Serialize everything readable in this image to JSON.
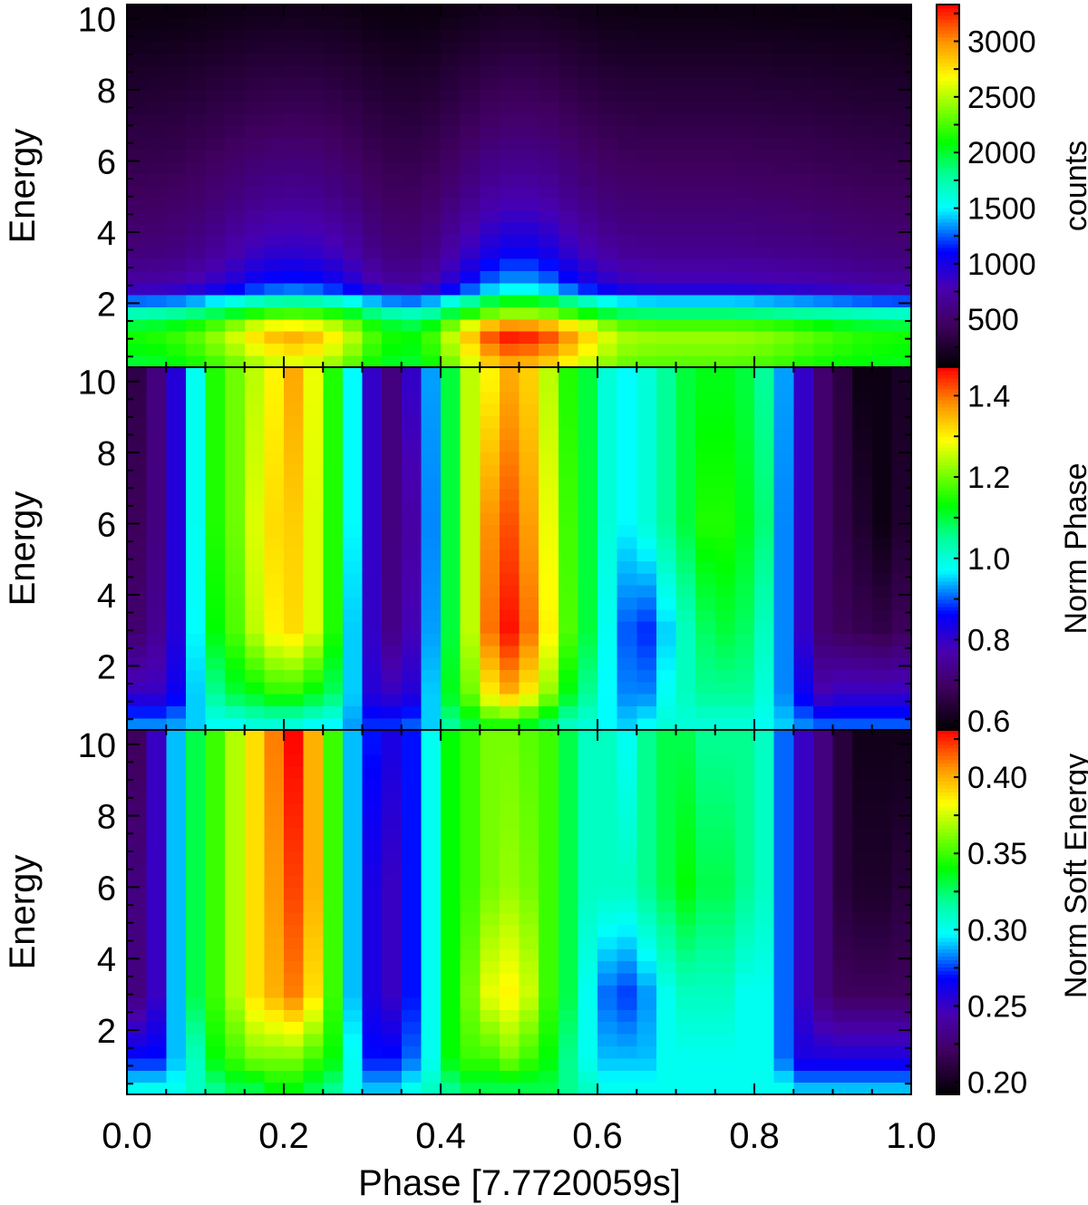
{
  "chart_data": {
    "type": "heatmap",
    "xlabel": "Phase [7.7720059s]",
    "x_range": [
      0.0,
      1.0
    ],
    "x_ticks": [
      "0.0",
      "0.2",
      "0.4",
      "0.6",
      "0.8",
      "1.0"
    ],
    "x_bins": 40,
    "energy_bins": 30,
    "colors": {
      "stops": [
        "#000000",
        "#400060",
        "#4800b0",
        "#0000ff",
        "#00ffff",
        "#00ff98",
        "#00ff00",
        "#ffff00",
        "#ff9000",
        "#ff0000"
      ],
      "positions": [
        0,
        0.12,
        0.22,
        0.32,
        0.44,
        0.53,
        0.62,
        0.8,
        0.9,
        1.0
      ]
    },
    "panels": [
      {
        "name": "counts",
        "ylabel": "Energy",
        "y_range": [
          0.2,
          10.4
        ],
        "y_ticks": [
          "2",
          "4",
          "6",
          "8",
          "10"
        ],
        "colorbar_label": "counts",
        "colorbar_range": [
          70,
          3330
        ],
        "colorbar_ticks": [
          "500",
          "1000",
          "1500",
          "2000",
          "2500",
          "3000"
        ],
        "colorbar_minor_step": 250,
        "phase_nodes": [
          0.025,
          0.075,
          0.125,
          0.175,
          0.225,
          0.275,
          0.325,
          0.375,
          0.425,
          0.475,
          0.525,
          0.575,
          0.625,
          0.675,
          0.725,
          0.775,
          0.825,
          0.875,
          0.925,
          0.975
        ],
        "energy_nodes": [
          0.4,
          1.0,
          1.3,
          1.7,
          2.0,
          2.2,
          2.5,
          3.5,
          5,
          7,
          10.2
        ],
        "z_by_energy": [
          [
            2000,
            2100,
            2300,
            2550,
            2650,
            2400,
            2050,
            2000,
            2500,
            2950,
            2900,
            2650,
            2350,
            2300,
            2300,
            2300,
            2250,
            2150,
            2100,
            2050
          ],
          [
            2150,
            2250,
            2500,
            2850,
            2950,
            2650,
            2150,
            2100,
            2700,
            3300,
            3250,
            2900,
            2500,
            2450,
            2450,
            2450,
            2400,
            2300,
            2200,
            2150
          ],
          [
            2050,
            2150,
            2400,
            2750,
            2800,
            2550,
            2100,
            2000,
            2600,
            3150,
            3100,
            2800,
            2400,
            2350,
            2350,
            2350,
            2300,
            2200,
            2100,
            2050
          ],
          [
            1750,
            1850,
            2000,
            2250,
            2300,
            2150,
            1800,
            1700,
            2100,
            2450,
            2450,
            2200,
            1950,
            1900,
            1900,
            1900,
            1850,
            1800,
            1750,
            1700
          ],
          [
            1400,
            1450,
            1650,
            1850,
            1900,
            1750,
            1450,
            1400,
            1800,
            2200,
            2200,
            1900,
            1600,
            1550,
            1550,
            1550,
            1500,
            1450,
            1400,
            1350
          ],
          [
            1050,
            1100,
            1300,
            1500,
            1550,
            1400,
            1100,
            1050,
            1450,
            1800,
            1800,
            1500,
            1250,
            1200,
            1200,
            1200,
            1150,
            1100,
            1050,
            1000
          ],
          [
            750,
            800,
            950,
            1150,
            1200,
            1050,
            750,
            700,
            1050,
            1400,
            1400,
            1100,
            900,
            850,
            850,
            850,
            820,
            800,
            750,
            720
          ],
          [
            560,
            600,
            720,
            880,
            900,
            800,
            580,
            560,
            800,
            1050,
            1050,
            830,
            680,
            650,
            650,
            650,
            630,
            610,
            580,
            560
          ],
          [
            450,
            480,
            560,
            650,
            670,
            600,
            460,
            450,
            600,
            760,
            760,
            620,
            530,
            510,
            510,
            510,
            500,
            480,
            460,
            450
          ],
          [
            330,
            350,
            400,
            450,
            460,
            420,
            340,
            330,
            420,
            520,
            520,
            440,
            380,
            370,
            370,
            370,
            360,
            350,
            330,
            320
          ],
          [
            130,
            140,
            160,
            180,
            185,
            170,
            135,
            130,
            170,
            210,
            210,
            175,
            150,
            145,
            145,
            145,
            140,
            135,
            130,
            125
          ]
        ]
      },
      {
        "name": "norm-phase",
        "ylabel": "Energy",
        "y_range": [
          0.2,
          10.4
        ],
        "y_ticks": [
          "2",
          "4",
          "6",
          "8",
          "10"
        ],
        "colorbar_label": "Norm Phase",
        "colorbar_range": [
          0.578,
          1.47
        ],
        "colorbar_ticks": [
          "0.6",
          "0.8",
          "1.0",
          "1.2",
          "1.4"
        ],
        "colorbar_minor_step": 0.1,
        "energy_nodes": [
          0.4,
          1.2,
          3,
          6,
          10
        ],
        "z_by_phase": [
          [
            0.92,
            0.8,
            0.7,
            0.68,
            0.66
          ],
          [
            0.92,
            0.8,
            0.74,
            0.72,
            0.72
          ],
          [
            0.93,
            0.85,
            0.82,
            0.82,
            0.82
          ],
          [
            0.95,
            0.95,
            0.97,
            0.98,
            0.98
          ],
          [
            0.98,
            1.05,
            1.13,
            1.15,
            1.15
          ],
          [
            0.98,
            1.1,
            1.18,
            1.2,
            1.2
          ],
          [
            1.0,
            1.12,
            1.25,
            1.27,
            1.25
          ],
          [
            1.0,
            1.15,
            1.3,
            1.32,
            1.3
          ],
          [
            1.0,
            1.15,
            1.32,
            1.33,
            1.36
          ],
          [
            0.98,
            1.12,
            1.27,
            1.27,
            1.28
          ],
          [
            0.97,
            1.08,
            1.15,
            1.15,
            1.15
          ],
          [
            0.93,
            0.95,
            0.95,
            0.97,
            0.97
          ],
          [
            0.88,
            0.82,
            0.8,
            0.8,
            0.8
          ],
          [
            0.88,
            0.8,
            0.73,
            0.72,
            0.72
          ],
          [
            0.9,
            0.82,
            0.78,
            0.76,
            0.8
          ],
          [
            0.95,
            0.95,
            0.93,
            0.92,
            0.93
          ],
          [
            1.05,
            1.12,
            1.1,
            1.1,
            1.1
          ],
          [
            1.1,
            1.2,
            1.25,
            1.25,
            1.25
          ],
          [
            1.15,
            1.3,
            1.4,
            1.38,
            1.3
          ],
          [
            1.15,
            1.35,
            1.46,
            1.42,
            1.36
          ],
          [
            1.12,
            1.3,
            1.4,
            1.37,
            1.33
          ],
          [
            1.08,
            1.22,
            1.3,
            1.28,
            1.25
          ],
          [
            1.02,
            1.12,
            1.18,
            1.17,
            1.15
          ],
          [
            1.0,
            1.05,
            1.1,
            1.1,
            1.1
          ],
          [
            0.97,
            0.97,
            0.98,
            1.0,
            1.0
          ],
          [
            0.95,
            0.92,
            0.9,
            0.97,
            0.97
          ],
          [
            0.97,
            0.92,
            0.88,
            1.0,
            1.0
          ],
          [
            1.0,
            0.98,
            0.95,
            1.05,
            1.05
          ],
          [
            1.0,
            1.02,
            1.02,
            1.1,
            1.1
          ],
          [
            1.0,
            1.05,
            1.08,
            1.15,
            1.12
          ],
          [
            1.0,
            1.05,
            1.1,
            1.15,
            1.12
          ],
          [
            1.0,
            1.05,
            1.08,
            1.12,
            1.1
          ],
          [
            0.98,
            1.0,
            1.02,
            1.07,
            1.05
          ],
          [
            0.95,
            0.92,
            0.92,
            0.92,
            0.93
          ],
          [
            0.92,
            0.85,
            0.8,
            0.8,
            0.8
          ],
          [
            0.9,
            0.78,
            0.7,
            0.7,
            0.7
          ],
          [
            0.9,
            0.8,
            0.68,
            0.66,
            0.65
          ],
          [
            0.9,
            0.8,
            0.67,
            0.63,
            0.6
          ],
          [
            0.9,
            0.8,
            0.66,
            0.6,
            0.6
          ],
          [
            0.9,
            0.8,
            0.68,
            0.63,
            0.62
          ]
        ]
      },
      {
        "name": "norm-soft-energy",
        "ylabel": "Energy",
        "y_range": [
          0.2,
          10.4
        ],
        "y_ticks": [
          "2",
          "4",
          "6",
          "8",
          "10"
        ],
        "colorbar_label": "Norm Soft Energy",
        "colorbar_range": [
          0.192,
          0.431
        ],
        "colorbar_ticks": [
          "0.20",
          "0.25",
          "0.30",
          "0.35",
          "0.40"
        ],
        "colorbar_minor_step": 0.025,
        "energy_nodes": [
          0.4,
          1.2,
          3,
          6,
          10
        ],
        "z_by_phase": [
          [
            0.3,
            0.27,
            0.23,
            0.23,
            0.22
          ],
          [
            0.3,
            0.27,
            0.25,
            0.25,
            0.25
          ],
          [
            0.3,
            0.29,
            0.29,
            0.29,
            0.29
          ],
          [
            0.31,
            0.31,
            0.33,
            0.33,
            0.33
          ],
          [
            0.32,
            0.34,
            0.35,
            0.35,
            0.35
          ],
          [
            0.33,
            0.35,
            0.37,
            0.37,
            0.37
          ],
          [
            0.33,
            0.36,
            0.39,
            0.39,
            0.39
          ],
          [
            0.34,
            0.36,
            0.4,
            0.405,
            0.41
          ],
          [
            0.34,
            0.36,
            0.41,
            0.42,
            0.43
          ],
          [
            0.33,
            0.35,
            0.39,
            0.4,
            0.4
          ],
          [
            0.32,
            0.34,
            0.35,
            0.35,
            0.35
          ],
          [
            0.3,
            0.3,
            0.29,
            0.29,
            0.29
          ],
          [
            0.29,
            0.27,
            0.26,
            0.26,
            0.27
          ],
          [
            0.29,
            0.27,
            0.25,
            0.25,
            0.26
          ],
          [
            0.3,
            0.28,
            0.27,
            0.27,
            0.27
          ],
          [
            0.31,
            0.3,
            0.3,
            0.3,
            0.3
          ],
          [
            0.32,
            0.34,
            0.34,
            0.34,
            0.34
          ],
          [
            0.33,
            0.35,
            0.36,
            0.35,
            0.35
          ],
          [
            0.33,
            0.35,
            0.38,
            0.36,
            0.36
          ],
          [
            0.33,
            0.36,
            0.385,
            0.365,
            0.36
          ],
          [
            0.33,
            0.35,
            0.375,
            0.36,
            0.355
          ],
          [
            0.33,
            0.34,
            0.35,
            0.35,
            0.35
          ],
          [
            0.32,
            0.32,
            0.33,
            0.33,
            0.33
          ],
          [
            0.31,
            0.3,
            0.3,
            0.31,
            0.31
          ],
          [
            0.3,
            0.29,
            0.28,
            0.31,
            0.31
          ],
          [
            0.3,
            0.29,
            0.275,
            0.31,
            0.3
          ],
          [
            0.3,
            0.29,
            0.285,
            0.32,
            0.32
          ],
          [
            0.3,
            0.3,
            0.3,
            0.33,
            0.33
          ],
          [
            0.3,
            0.3,
            0.31,
            0.34,
            0.33
          ],
          [
            0.3,
            0.3,
            0.31,
            0.33,
            0.32
          ],
          [
            0.3,
            0.3,
            0.31,
            0.33,
            0.32
          ],
          [
            0.3,
            0.3,
            0.3,
            0.32,
            0.32
          ],
          [
            0.3,
            0.3,
            0.3,
            0.31,
            0.31
          ],
          [
            0.3,
            0.28,
            0.28,
            0.28,
            0.28
          ],
          [
            0.29,
            0.26,
            0.25,
            0.25,
            0.25
          ],
          [
            0.29,
            0.26,
            0.23,
            0.23,
            0.23
          ],
          [
            0.29,
            0.26,
            0.22,
            0.21,
            0.21
          ],
          [
            0.29,
            0.26,
            0.22,
            0.205,
            0.2
          ],
          [
            0.29,
            0.26,
            0.22,
            0.205,
            0.2
          ],
          [
            0.29,
            0.26,
            0.22,
            0.21,
            0.2
          ]
        ]
      }
    ]
  }
}
